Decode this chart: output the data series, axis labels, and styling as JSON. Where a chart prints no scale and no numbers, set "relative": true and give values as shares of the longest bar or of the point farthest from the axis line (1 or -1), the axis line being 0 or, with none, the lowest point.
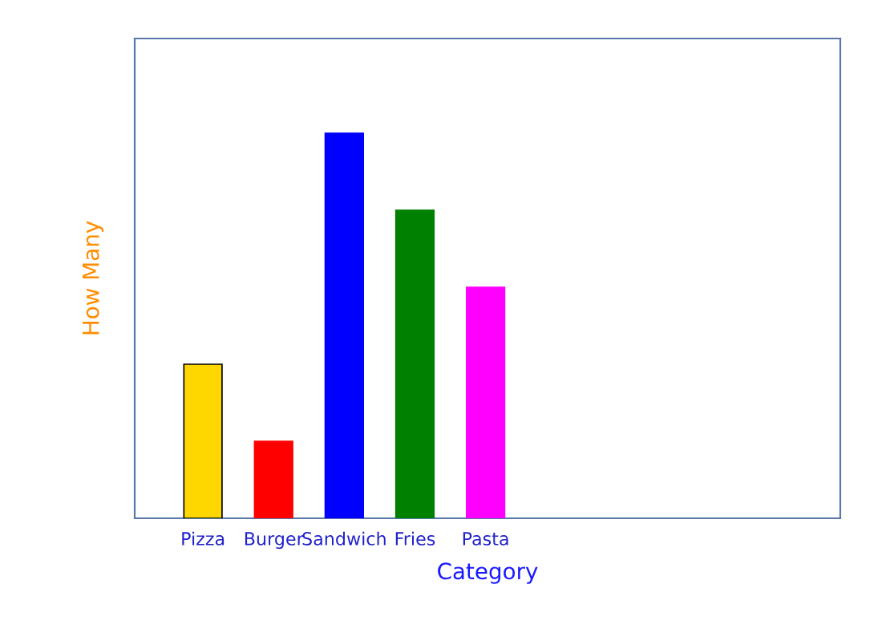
{
  "chart_data": {
    "type": "bar",
    "relative": true,
    "xlabel": "Category",
    "ylabel": "How Many",
    "categories": [
      "Pizza",
      "Burger",
      "Sandwich",
      "Fries",
      "Pasta"
    ],
    "values": [
      0.4,
      0.2,
      1,
      0.8,
      0.6
    ],
    "colors": [
      "#ffd700",
      "#ff0000",
      "#0000ff",
      "#008000",
      "#ff00ff"
    ],
    "grid": false
  }
}
